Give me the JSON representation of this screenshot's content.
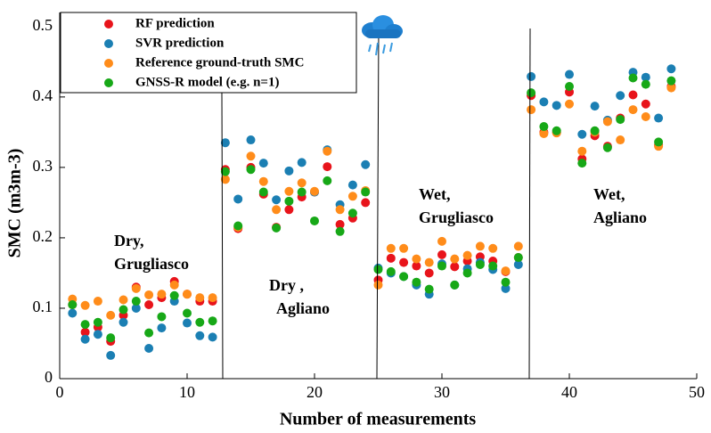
{
  "chart_data": {
    "type": "scatter",
    "xlabel": "Number of measurements",
    "ylabel": "SMC (m3m-3)",
    "xlim": [
      0,
      50
    ],
    "ylim": [
      0,
      0.52
    ],
    "xticks": [
      0,
      10,
      20,
      30,
      40,
      50
    ],
    "yticks": [
      0,
      0.1,
      0.2,
      0.3,
      0.4,
      0.5
    ],
    "legend": "upper left",
    "x": [
      1,
      2,
      3,
      4,
      5,
      6,
      7,
      8,
      9,
      10,
      11,
      12,
      13,
      14,
      15,
      16,
      17,
      18,
      19,
      20,
      21,
      22,
      23,
      24,
      25,
      26,
      27,
      28,
      29,
      30,
      31,
      32,
      33,
      34,
      35,
      36,
      37,
      38,
      39,
      40,
      41,
      42,
      43,
      44,
      45,
      46,
      47,
      48
    ],
    "series": [
      {
        "name": "RF prediction",
        "color": "#e8141b",
        "values": [
          0.105,
          0.066,
          0.073,
          0.053,
          0.09,
          0.13,
          0.105,
          0.115,
          0.138,
          0.12,
          0.11,
          0.11,
          0.297,
          0.213,
          0.3,
          0.262,
          0.215,
          0.24,
          0.258,
          0.265,
          0.301,
          0.219,
          0.228,
          0.25,
          0.14,
          0.171,
          0.165,
          0.16,
          0.15,
          0.176,
          0.159,
          0.167,
          0.173,
          0.167,
          0.152,
          0.172,
          0.402,
          0.35,
          0.35,
          0.407,
          0.312,
          0.345,
          0.33,
          0.37,
          0.403,
          0.39,
          0.332,
          0.415
        ]
      },
      {
        "name": "SVR prediction",
        "color": "#1b7fb3",
        "values": [
          0.093,
          0.056,
          0.063,
          0.033,
          0.08,
          0.1,
          0.043,
          0.072,
          0.11,
          0.079,
          0.061,
          0.059,
          0.335,
          0.255,
          0.339,
          0.306,
          0.254,
          0.295,
          0.307,
          0.265,
          0.325,
          0.247,
          0.275,
          0.304,
          0.157,
          0.15,
          0.145,
          0.133,
          0.12,
          0.163,
          0.133,
          0.156,
          0.165,
          0.155,
          0.128,
          0.162,
          0.429,
          0.393,
          0.388,
          0.432,
          0.347,
          0.387,
          0.367,
          0.402,
          0.435,
          0.428,
          0.37,
          0.44
        ]
      },
      {
        "name": "Reference ground-truth SMC",
        "color": "#ff8c1a",
        "values": [
          0.113,
          0.104,
          0.11,
          0.09,
          0.112,
          0.128,
          0.119,
          0.12,
          0.133,
          0.12,
          0.115,
          0.115,
          0.283,
          0.215,
          0.316,
          0.28,
          0.24,
          0.266,
          0.278,
          0.266,
          0.323,
          0.24,
          0.259,
          0.267,
          0.133,
          0.185,
          0.185,
          0.17,
          0.165,
          0.195,
          0.17,
          0.175,
          0.188,
          0.185,
          0.153,
          0.188,
          0.382,
          0.348,
          0.349,
          0.39,
          0.323,
          0.35,
          0.365,
          0.339,
          0.382,
          0.372,
          0.33,
          0.413
        ]
      },
      {
        "name": "GNSS-R model (e.g. n=1)",
        "color": "#17a817",
        "values": [
          0.105,
          0.077,
          0.08,
          0.058,
          0.098,
          0.11,
          0.065,
          0.088,
          0.118,
          0.093,
          0.08,
          0.082,
          0.294,
          0.217,
          0.297,
          0.265,
          0.214,
          0.252,
          0.265,
          0.224,
          0.281,
          0.209,
          0.235,
          0.265,
          0.155,
          0.152,
          0.145,
          0.137,
          0.127,
          0.16,
          0.133,
          0.15,
          0.162,
          0.16,
          0.137,
          0.172,
          0.406,
          0.358,
          0.352,
          0.415,
          0.306,
          0.352,
          0.328,
          0.368,
          0.427,
          0.418,
          0.336,
          0.423
        ]
      }
    ],
    "annotations": [
      [
        "Dry,",
        "Grugliasco"
      ],
      [
        "Dry ,",
        "Agliano"
      ],
      [
        "Wet,",
        "Grugliasco"
      ],
      [
        "Wet,",
        "Agliano"
      ]
    ]
  }
}
